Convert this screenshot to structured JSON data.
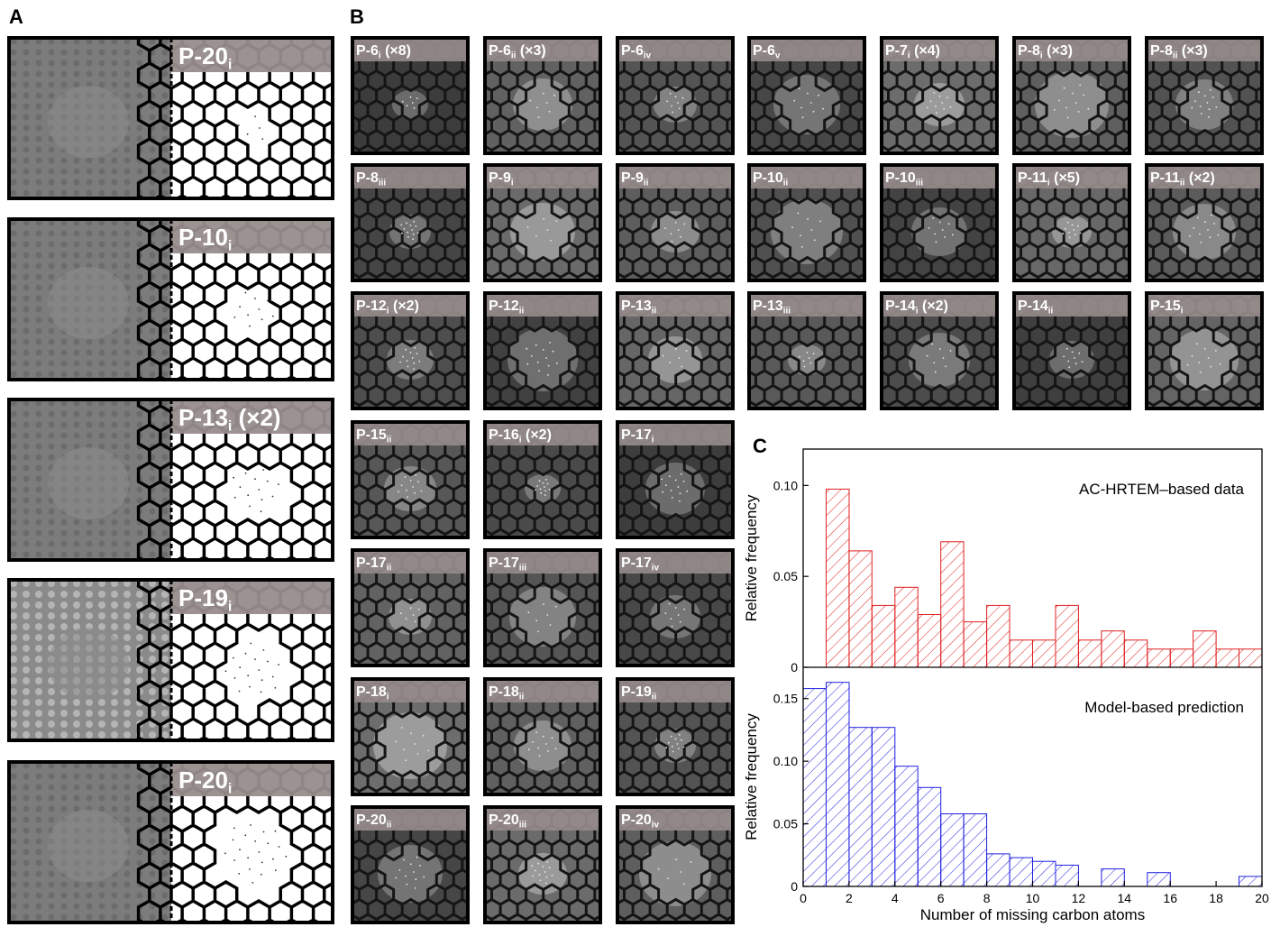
{
  "panels": {
    "a": "A",
    "b": "B",
    "c": "C"
  },
  "panel_a": [
    {
      "base": "P-20",
      "sub": "i",
      "mult": ""
    },
    {
      "base": "P-10",
      "sub": "i",
      "mult": ""
    },
    {
      "base": "P-13",
      "sub": "i",
      "mult": " (×2)"
    },
    {
      "base": "P-19",
      "sub": "i",
      "mult": ""
    },
    {
      "base": "P-20",
      "sub": "i",
      "mult": ""
    }
  ],
  "panel_b": [
    {
      "base": "P-6",
      "sub": "i",
      "mult": " (×8)"
    },
    {
      "base": "P-6",
      "sub": "ii",
      "mult": " (×3)"
    },
    {
      "base": "P-6",
      "sub": "iv",
      "mult": ""
    },
    {
      "base": "P-6",
      "sub": "v",
      "mult": ""
    },
    {
      "base": "P-7",
      "sub": "i",
      "mult": " (×4)"
    },
    {
      "base": "P-8",
      "sub": "i",
      "mult": " (×3)"
    },
    {
      "base": "P-8",
      "sub": "ii",
      "mult": " (×3)"
    },
    {
      "base": "P-8",
      "sub": "iii",
      "mult": ""
    },
    {
      "base": "P-9",
      "sub": "i",
      "mult": ""
    },
    {
      "base": "P-9",
      "sub": "ii",
      "mult": ""
    },
    {
      "base": "P-10",
      "sub": "ii",
      "mult": ""
    },
    {
      "base": "P-10",
      "sub": "iii",
      "mult": ""
    },
    {
      "base": "P-11",
      "sub": "i",
      "mult": " (×5)"
    },
    {
      "base": "P-11",
      "sub": "ii",
      "mult": " (×2)"
    },
    {
      "base": "P-12",
      "sub": "i",
      "mult": " (×2)"
    },
    {
      "base": "P-12",
      "sub": "ii",
      "mult": ""
    },
    {
      "base": "P-13",
      "sub": "ii",
      "mult": ""
    },
    {
      "base": "P-13",
      "sub": "iii",
      "mult": ""
    },
    {
      "base": "P-14",
      "sub": "i",
      "mult": " (×2)"
    },
    {
      "base": "P-14",
      "sub": "ii",
      "mult": ""
    },
    {
      "base": "P-15",
      "sub": "i",
      "mult": ""
    },
    {
      "base": "P-15",
      "sub": "ii",
      "mult": ""
    },
    {
      "base": "P-16",
      "sub": "i",
      "mult": " (×2)"
    },
    {
      "base": "P-17",
      "sub": "i",
      "mult": ""
    },
    {
      "base": "P-17",
      "sub": "ii",
      "mult": ""
    },
    {
      "base": "P-17",
      "sub": "iii",
      "mult": ""
    },
    {
      "base": "P-17",
      "sub": "iv",
      "mult": ""
    },
    {
      "base": "P-18",
      "sub": "i",
      "mult": ""
    },
    {
      "base": "P-18",
      "sub": "ii",
      "mult": ""
    },
    {
      "base": "P-19",
      "sub": "ii",
      "mult": ""
    },
    {
      "base": "P-20",
      "sub": "ii",
      "mult": ""
    },
    {
      "base": "P-20",
      "sub": "iii",
      "mult": ""
    },
    {
      "base": "P-20",
      "sub": "iv",
      "mult": ""
    }
  ],
  "chart_data": [
    {
      "type": "bar",
      "annotation": "AC-HRTEM–based data",
      "xlabel": "",
      "ylabel": "Relative frequency",
      "color": "#e02020",
      "bin_edges": [
        1,
        2,
        3,
        4,
        5,
        6,
        7,
        8,
        9,
        10,
        11,
        12,
        13,
        14,
        15,
        16,
        17,
        18,
        19,
        20
      ],
      "values": [
        0.098,
        0.064,
        0.034,
        0.044,
        0.029,
        0.069,
        0.025,
        0.034,
        0.015,
        0.015,
        0.034,
        0.015,
        0.02,
        0.015,
        0.01,
        0.01,
        0.02,
        0.01,
        0.01
      ],
      "xlim": [
        0,
        20
      ],
      "ylim": [
        0,
        0.12
      ],
      "yticks": [
        0,
        0.05,
        0.1
      ],
      "ytick_labels": [
        "0",
        "0.05",
        "0.10"
      ]
    },
    {
      "type": "bar",
      "annotation": "Model-based prediction",
      "xlabel": "Number of missing carbon atoms",
      "ylabel": "Relative frequency",
      "color": "#2020e0",
      "bin_edges": [
        0,
        1,
        2,
        3,
        4,
        5,
        6,
        7,
        8,
        9,
        10,
        11,
        12,
        13,
        14,
        15,
        16,
        17,
        18,
        19,
        20
      ],
      "values": [
        0.158,
        0.163,
        0.127,
        0.127,
        0.096,
        0.079,
        0.058,
        0.058,
        0.026,
        0.023,
        0.02,
        0.017,
        0.0,
        0.014,
        0.0,
        0.011,
        0.0,
        0.0,
        0.0,
        0.008
      ],
      "xlim": [
        0,
        20
      ],
      "ylim": [
        0,
        0.175
      ],
      "xticks": [
        0,
        2,
        4,
        6,
        8,
        10,
        12,
        14,
        16,
        18,
        20
      ],
      "yticks": [
        0,
        0.05,
        0.1,
        0.15
      ],
      "ytick_labels": [
        "0",
        "0.05",
        "0.10",
        "0.15"
      ]
    }
  ]
}
